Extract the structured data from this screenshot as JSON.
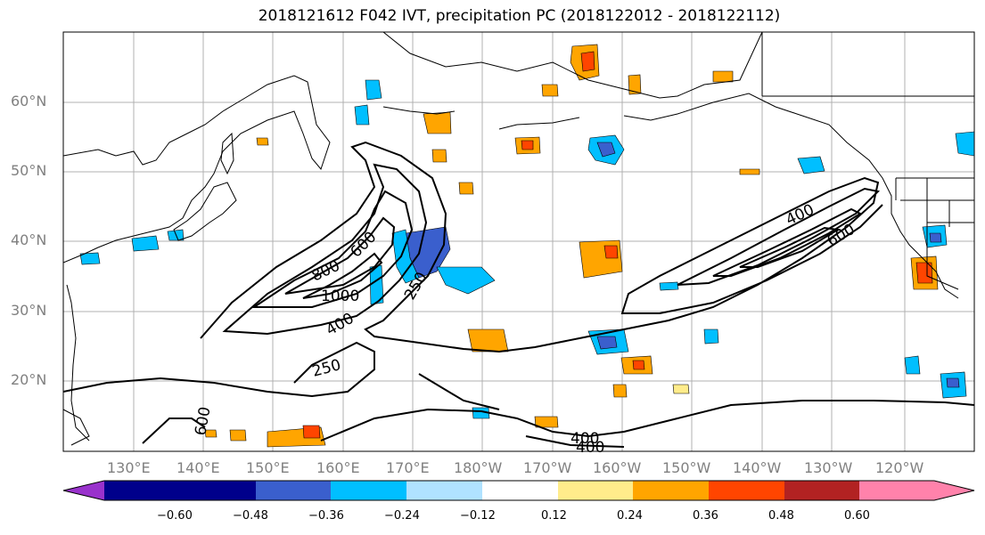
{
  "title": "2018121612 F042 IVT, precipitation PC (2018122012 - 2018122112)",
  "map": {
    "lat_labels": [
      "60°N",
      "50°N",
      "40°N",
      "30°N",
      "20°N"
    ],
    "lon_labels": [
      "130°E",
      "140°E",
      "150°E",
      "160°E",
      "170°E",
      "180°W",
      "170°W",
      "160°W",
      "150°W",
      "140°W",
      "130°W",
      "120°W"
    ],
    "contour_labels": [
      "800",
      "600",
      "1000",
      "400",
      "250",
      "250",
      "400",
      "600",
      "400",
      "400",
      "600"
    ],
    "ivt_levels": [
      250,
      400,
      600,
      800,
      1000
    ]
  },
  "colorbar": {
    "ticks": [
      "−0.60",
      "−0.48",
      "−0.36",
      "−0.24",
      "−0.12",
      "0.12",
      "0.24",
      "0.36",
      "0.48",
      "0.60"
    ],
    "colors": [
      "#9932cc",
      "#00008b",
      "#3a5fcd",
      "#00bfff",
      "#b0e2ff",
      "#ffffff",
      "#ffec8b",
      "#ffa500",
      "#ff4500",
      "#b22222",
      "#ff82ab"
    ]
  },
  "colors": {
    "land_line": "#000000",
    "grid": "#b0b0b0",
    "tick_label": "#808080"
  }
}
